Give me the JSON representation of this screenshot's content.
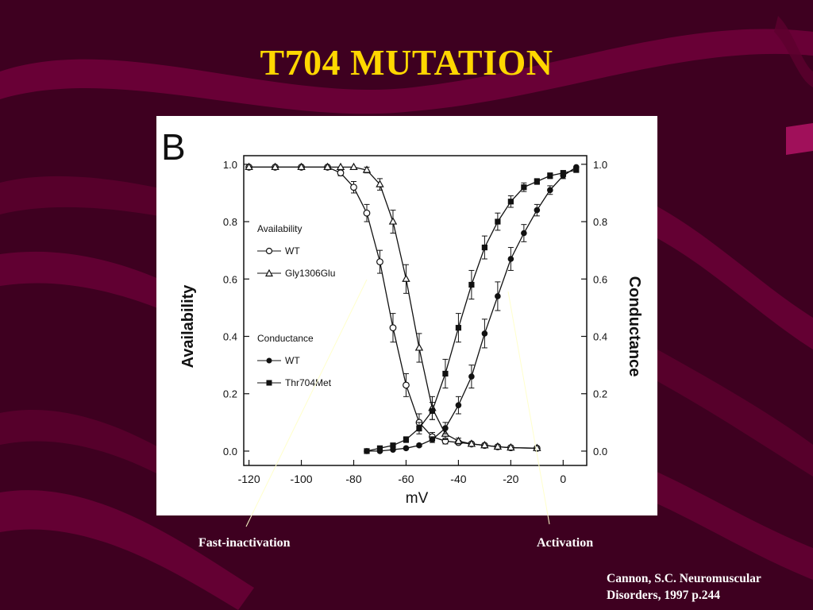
{
  "slide": {
    "title": "T704 MUTATION",
    "callouts": {
      "fast_inactivation": "Fast-inactivation",
      "activation": "Activation"
    },
    "citation": {
      "line1": "Cannon, S.C. Neuromuscular",
      "line2": "Disorders, 1997 p.244"
    },
    "colors": {
      "background": "#3e0020",
      "wave": "#6e0038",
      "title": "#ffd700",
      "text": "#ffffff",
      "pointer": "#ffffcc"
    }
  },
  "chart_data": {
    "type": "line",
    "panel_label": "B",
    "xlabel": "mV",
    "ylabel_left": "Availability",
    "ylabel_right": "Conductance",
    "xlim": [
      -122,
      9
    ],
    "ylim": [
      -0.05,
      1.03
    ],
    "xticks": [
      "-120",
      "-100",
      "-80",
      "-60",
      "-40",
      "-20",
      "0"
    ],
    "xtick_values": [
      -120,
      -100,
      -80,
      -60,
      -40,
      -20,
      0
    ],
    "yticks_left": [
      "0.0",
      "0.2",
      "0.4",
      "0.6",
      "0.8",
      "1.0"
    ],
    "yticks_right": [
      "0.0",
      "0.2",
      "0.4",
      "0.6",
      "0.8",
      "1.0"
    ],
    "ytick_values": [
      0,
      0.2,
      0.4,
      0.6,
      0.8,
      1.0
    ],
    "legend": {
      "availability_heading": "Availability",
      "conductance_heading": "Conductance"
    },
    "series": [
      {
        "name": "WT",
        "group": "Availability",
        "marker": "circle-open",
        "x": [
          -120,
          -110,
          -100,
          -90,
          -85,
          -80,
          -75,
          -70,
          -65,
          -60,
          -55,
          -50,
          -45,
          -40,
          -35,
          -30,
          -25,
          -20,
          -10
        ],
        "y": [
          0.99,
          0.99,
          0.99,
          0.99,
          0.97,
          0.92,
          0.83,
          0.66,
          0.43,
          0.23,
          0.1,
          0.05,
          0.035,
          0.03,
          0.025,
          0.02,
          0.015,
          0.012,
          0.01
        ],
        "err": [
          0,
          0,
          0,
          0,
          0.01,
          0.02,
          0.03,
          0.04,
          0.05,
          0.04,
          0.03,
          0.015,
          0.01,
          0.005,
          0,
          0,
          0,
          0,
          0
        ]
      },
      {
        "name": "Gly1306Glu",
        "group": "Availability",
        "marker": "triangle-open",
        "x": [
          -120,
          -110,
          -100,
          -90,
          -85,
          -80,
          -75,
          -70,
          -65,
          -60,
          -55,
          -50,
          -45,
          -40,
          -35,
          -30,
          -25,
          -20,
          -10
        ],
        "y": [
          0.99,
          0.99,
          0.99,
          0.99,
          0.99,
          0.99,
          0.98,
          0.93,
          0.8,
          0.6,
          0.36,
          0.15,
          0.06,
          0.035,
          0.025,
          0.02,
          0.015,
          0.012,
          0.01
        ],
        "err": [
          0,
          0,
          0,
          0,
          0,
          0,
          0.01,
          0.02,
          0.04,
          0.05,
          0.05,
          0.04,
          0.02,
          0.01,
          0,
          0,
          0,
          0,
          0
        ]
      },
      {
        "name": "WT",
        "group": "Conductance",
        "marker": "circle-filled",
        "x": [
          -75,
          -70,
          -65,
          -60,
          -55,
          -50,
          -45,
          -40,
          -35,
          -30,
          -25,
          -20,
          -15,
          -10,
          -5,
          0,
          5
        ],
        "y": [
          0.0,
          0.0,
          0.005,
          0.01,
          0.02,
          0.04,
          0.08,
          0.16,
          0.26,
          0.41,
          0.54,
          0.67,
          0.76,
          0.84,
          0.91,
          0.96,
          0.99
        ],
        "err": [
          0,
          0,
          0,
          0,
          0.005,
          0.01,
          0.02,
          0.03,
          0.04,
          0.05,
          0.05,
          0.04,
          0.03,
          0.02,
          0.015,
          0.01,
          0
        ]
      },
      {
        "name": "Thr704Met",
        "group": "Conductance",
        "marker": "square-filled",
        "x": [
          -75,
          -70,
          -65,
          -60,
          -55,
          -50,
          -45,
          -40,
          -35,
          -30,
          -25,
          -20,
          -15,
          -10,
          -5,
          0,
          5
        ],
        "y": [
          0.0,
          0.01,
          0.02,
          0.04,
          0.08,
          0.14,
          0.27,
          0.43,
          0.58,
          0.71,
          0.8,
          0.87,
          0.92,
          0.94,
          0.96,
          0.97,
          0.98
        ],
        "err": [
          0,
          0,
          0,
          0.01,
          0.02,
          0.03,
          0.05,
          0.05,
          0.05,
          0.04,
          0.03,
          0.02,
          0.015,
          0.01,
          0.01,
          0,
          0
        ]
      }
    ]
  }
}
